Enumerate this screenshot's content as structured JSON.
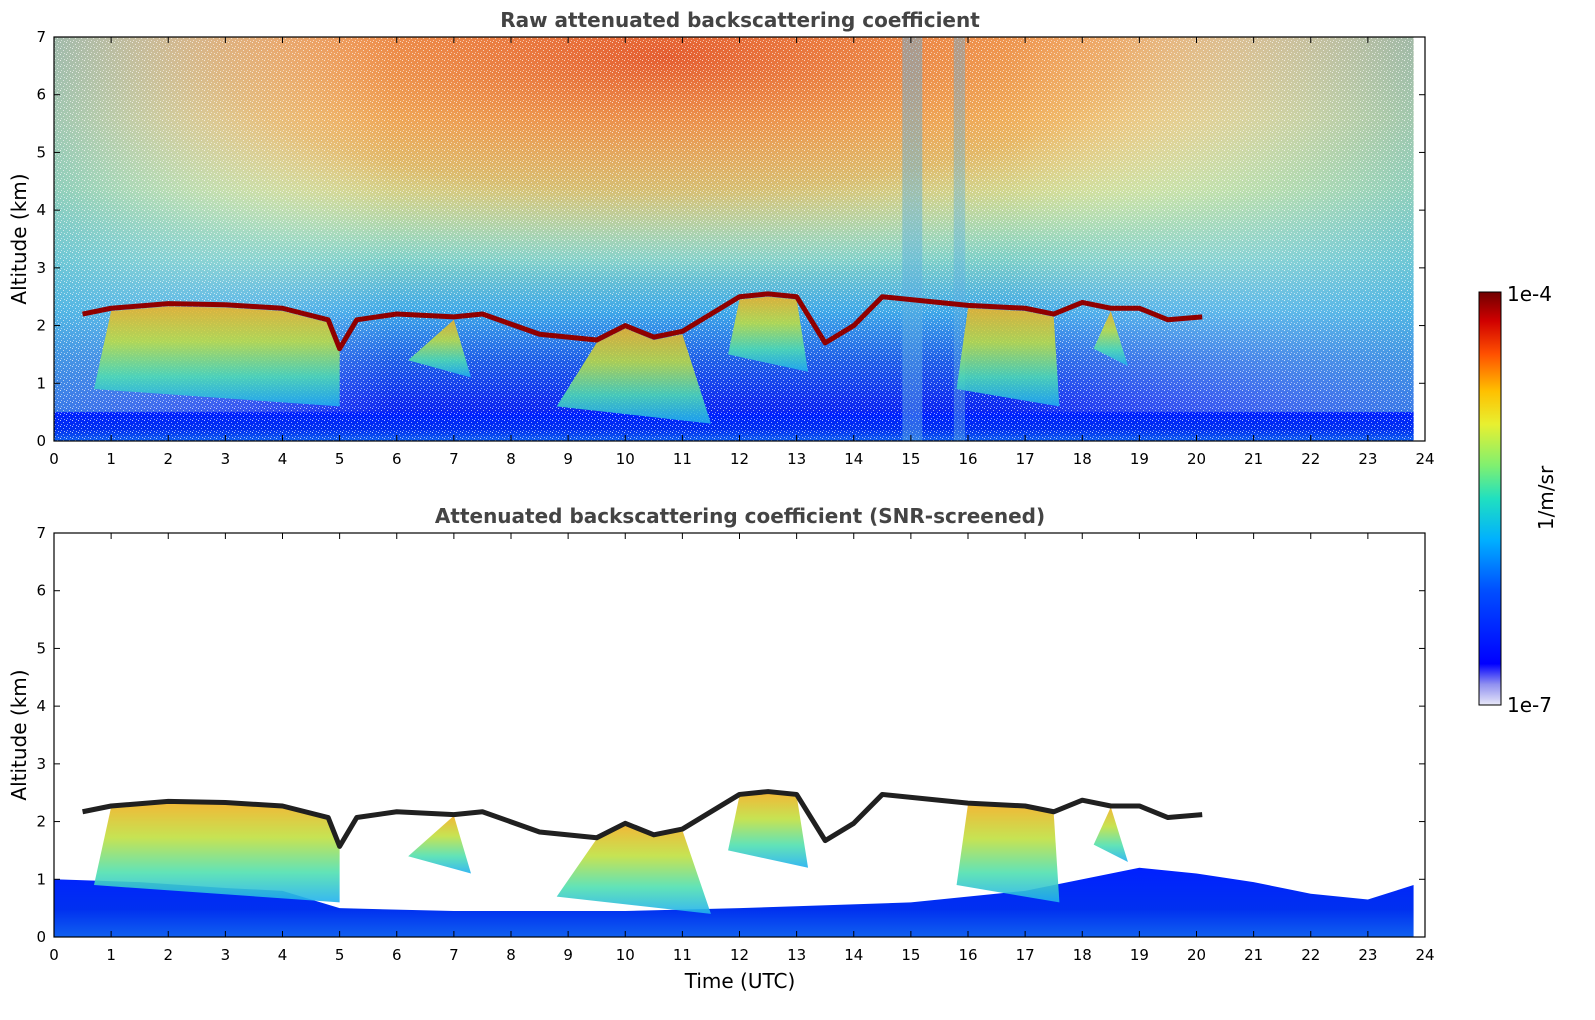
{
  "chart_data": [
    {
      "type": "heatmap",
      "title": "Raw attenuated backscattering coefficient",
      "ylabel": "Altitude (km)",
      "xlabel": "",
      "xlim": [
        0,
        24
      ],
      "ylim": [
        0,
        7
      ],
      "xticks": [
        "0",
        "1",
        "2",
        "3",
        "4",
        "5",
        "6",
        "7",
        "8",
        "9",
        "10",
        "11",
        "12",
        "13",
        "14",
        "15",
        "16",
        "17",
        "18",
        "19",
        "20",
        "21",
        "22",
        "23",
        "24"
      ],
      "yticks": [
        "0",
        "1",
        "2",
        "3",
        "4",
        "5",
        "6",
        "7"
      ],
      "data_extent_hours": [
        0,
        23.8
      ],
      "cloud_base_km": [
        [
          0.5,
          2.2
        ],
        [
          1,
          2.3
        ],
        [
          2,
          2.38
        ],
        [
          3,
          2.36
        ],
        [
          4,
          2.3
        ],
        [
          4.8,
          2.1
        ],
        [
          5,
          1.6
        ],
        [
          5.3,
          2.1
        ],
        [
          6,
          2.2
        ],
        [
          7,
          2.15
        ],
        [
          7.5,
          2.2
        ],
        [
          8.5,
          1.85
        ],
        [
          9.5,
          1.75
        ],
        [
          10,
          2.0
        ],
        [
          10.5,
          1.8
        ],
        [
          11,
          1.9
        ],
        [
          12,
          2.5
        ],
        [
          12.5,
          2.55
        ],
        [
          13,
          2.5
        ],
        [
          13.5,
          1.7
        ],
        [
          14,
          2.0
        ],
        [
          14.5,
          2.5
        ],
        [
          15.5,
          2.4
        ],
        [
          16,
          2.35
        ],
        [
          17,
          2.3
        ],
        [
          17.5,
          2.2
        ],
        [
          18,
          2.4
        ],
        [
          18.5,
          2.3
        ],
        [
          19,
          2.3
        ],
        [
          19.5,
          2.1
        ],
        [
          20.1,
          2.15
        ]
      ]
    },
    {
      "type": "heatmap",
      "title": "Attenuated backscattering coefficient (SNR-screened)",
      "ylabel": "Altitude (km)",
      "xlabel": "Time (UTC)",
      "xlim": [
        0,
        24
      ],
      "ylim": [
        0,
        7
      ],
      "xticks": [
        "0",
        "1",
        "2",
        "3",
        "4",
        "5",
        "6",
        "7",
        "8",
        "9",
        "10",
        "11",
        "12",
        "13",
        "14",
        "15",
        "16",
        "17",
        "18",
        "19",
        "20",
        "21",
        "22",
        "23",
        "24"
      ],
      "yticks": [
        "0",
        "1",
        "2",
        "3",
        "4",
        "5",
        "6",
        "7"
      ],
      "data_extent_hours": [
        0,
        23.8
      ]
    }
  ],
  "colorbar": {
    "label": "1/m/sr",
    "max_label": "1e-4",
    "min_label": "1e-7",
    "colors": [
      "#e8e8f8",
      "#0000d0",
      "#0000ff",
      "#0060ff",
      "#00b0ff",
      "#20e0d0",
      "#80f080",
      "#e0f040",
      "#ffc000",
      "#ff6000",
      "#e00000",
      "#800000"
    ]
  }
}
